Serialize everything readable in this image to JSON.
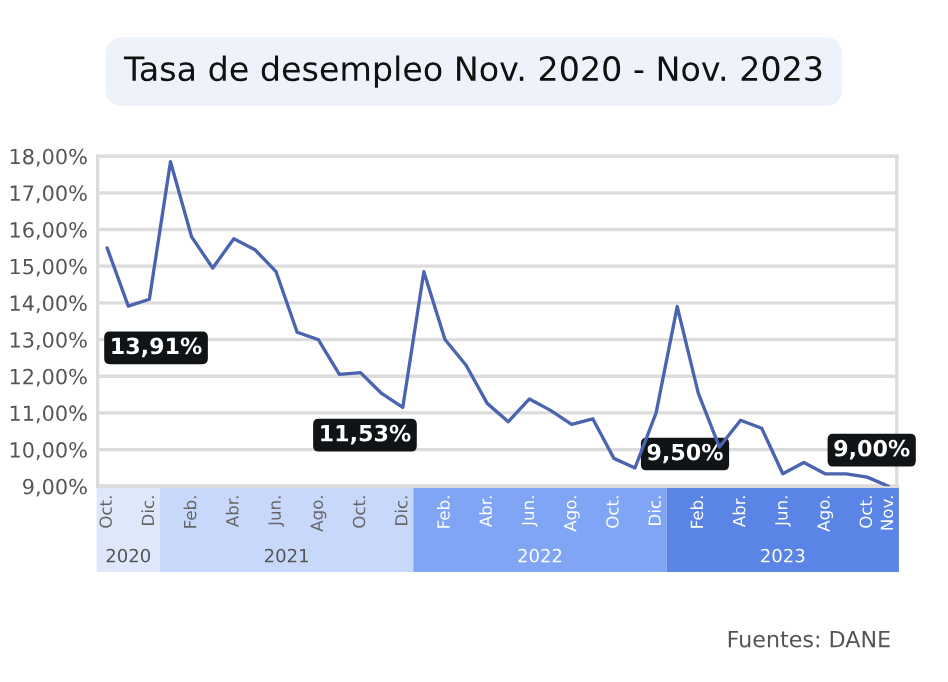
{
  "chart_data": {
    "type": "line",
    "title": "Tasa de desempleo Nov. 2020 - Nov. 2023",
    "categories": [
      "Oct.",
      null,
      "Dic.",
      null,
      "Feb.",
      null,
      "Abr.",
      null,
      "Jun.",
      null,
      "Ago.",
      null,
      "Oct.",
      null,
      "Dic.",
      null,
      "Feb.",
      null,
      "Abr.",
      null,
      "Jun.",
      null,
      "Ago.",
      null,
      "Oct.",
      null,
      "Dic.",
      null,
      "Feb.",
      null,
      "Abr.",
      null,
      "Jun.",
      null,
      "Ago.",
      null,
      "Oct.",
      "Nov."
    ],
    "series": [
      {
        "color": "#4a64b0",
        "values": [
          15.5,
          13.91,
          14.1,
          17.85,
          15.8,
          14.95,
          15.75,
          15.45,
          14.85,
          13.2,
          13.0,
          12.05,
          12.1,
          11.53,
          11.15,
          14.85,
          13.0,
          12.3,
          11.26,
          10.76,
          11.38,
          11.07,
          10.69,
          10.84,
          9.76,
          9.5,
          11.0,
          13.9,
          11.53,
          10.07,
          10.8,
          10.58,
          9.34,
          9.65,
          9.34,
          9.34,
          9.25,
          9.0
        ],
        "value_labels": [
          null,
          "13,91%",
          null,
          null,
          null,
          null,
          null,
          null,
          null,
          null,
          null,
          null,
          null,
          "11,53%",
          null,
          null,
          null,
          null,
          null,
          null,
          null,
          null,
          null,
          null,
          null,
          "9,50%",
          null,
          null,
          null,
          null,
          null,
          null,
          null,
          null,
          null,
          null,
          null,
          "9,00%"
        ]
      }
    ],
    "ylim": [
      9,
      18
    ],
    "yticks": [
      {
        "value": 9,
        "label": "9,00%"
      },
      {
        "value": 10,
        "label": "10,00%"
      },
      {
        "value": 11,
        "label": "11,00%"
      },
      {
        "value": 12,
        "label": "12,00%"
      },
      {
        "value": 13,
        "label": "13,00%"
      },
      {
        "value": 14,
        "label": "14,00%"
      },
      {
        "value": 15,
        "label": "15,00%"
      },
      {
        "value": 16,
        "label": "16,00%"
      },
      {
        "value": 17,
        "label": "17,00%"
      },
      {
        "value": 18,
        "label": "18,00%"
      }
    ],
    "grid": "y",
    "marker": "none",
    "line_style": "solid",
    "annotations": [
      "2020",
      "2021",
      "2022",
      "2023",
      "Fuentes: DANE"
    ]
  }
}
